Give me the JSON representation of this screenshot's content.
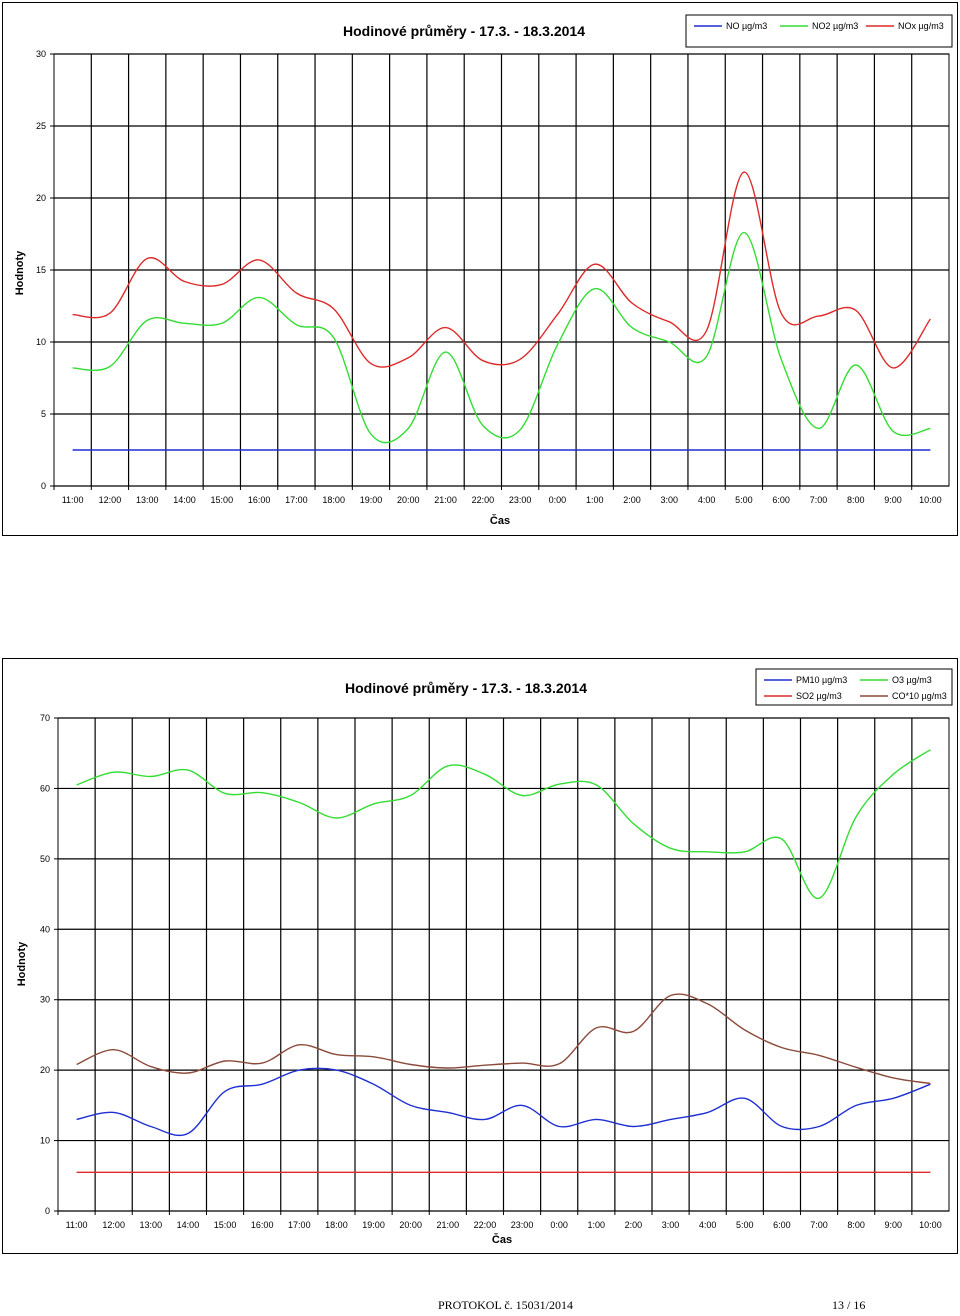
{
  "footer": {
    "protocol": "PROTOKOL č. 15031/2014",
    "page": "13 / 16"
  },
  "colors": {
    "NO": "#1f2fd1",
    "NO2": "#33dd33",
    "NOx": "#dd2a2a",
    "PM10": "#1f2fd1",
    "O3": "#33dd33",
    "SO2": "#dd2a2a",
    "CO": "#8b4a3a"
  },
  "chart_data": [
    {
      "type": "line",
      "title": "Hodinové průměry -  17.3. - 18.3.2014",
      "xlabel": "Čas",
      "ylabel": "Hodnoty",
      "ylim": [
        0,
        30
      ],
      "yticks": [
        0,
        5,
        10,
        15,
        20,
        25,
        30
      ],
      "grid": true,
      "legend_position": "top-right",
      "categories": [
        "11:00",
        "12:00",
        "13:00",
        "14:00",
        "15:00",
        "16:00",
        "17:00",
        "18:00",
        "19:00",
        "20:00",
        "21:00",
        "22:00",
        "23:00",
        "0:00",
        "1:00",
        "2:00",
        "3:00",
        "4:00",
        "5:00",
        "6:00",
        "7:00",
        "8:00",
        "9:00",
        "10:00"
      ],
      "series": [
        {
          "name": "NO µg/m3",
          "values": [
            2.5,
            2.5,
            2.5,
            2.5,
            2.5,
            2.5,
            2.5,
            2.5,
            2.5,
            2.5,
            2.5,
            2.5,
            2.5,
            2.5,
            2.5,
            2.5,
            2.5,
            2.5,
            2.5,
            2.5,
            2.5,
            2.5,
            2.5,
            2.5
          ]
        },
        {
          "name": "NO2 µg/m3",
          "values": [
            8.2,
            8.3,
            11.5,
            11.3,
            11.3,
            13.1,
            11.2,
            10.3,
            3.6,
            4.0,
            9.3,
            4.2,
            3.9,
            9.8,
            13.7,
            11.0,
            10.0,
            9.0,
            17.6,
            8.8,
            4.0,
            8.4,
            3.8,
            4.0
          ]
        },
        {
          "name": "NOx µg/m3",
          "values": [
            11.9,
            12.0,
            15.8,
            14.2,
            14.0,
            15.7,
            13.4,
            12.3,
            8.5,
            8.9,
            11.0,
            8.7,
            8.8,
            11.9,
            15.4,
            12.7,
            11.4,
            10.8,
            21.8,
            12.0,
            11.8,
            12.2,
            8.2,
            11.6
          ]
        }
      ]
    },
    {
      "type": "line",
      "title": "Hodinové průměry -  17.3. - 18.3.2014",
      "xlabel": "Čas",
      "ylabel": "Hodnoty",
      "ylim": [
        0,
        70
      ],
      "yticks": [
        0,
        10,
        20,
        30,
        40,
        50,
        60,
        70
      ],
      "grid": true,
      "legend_position": "top-right",
      "categories": [
        "11:00",
        "12:00",
        "13:00",
        "14:00",
        "15:00",
        "16:00",
        "17:00",
        "18:00",
        "19:00",
        "20:00",
        "21:00",
        "22:00",
        "23:00",
        "0:00",
        "1:00",
        "2:00",
        "3:00",
        "4:00",
        "5:00",
        "6:00",
        "7:00",
        "8:00",
        "9:00",
        "10:00"
      ],
      "series": [
        {
          "name": "PM10 µg/m3",
          "values": [
            13,
            14,
            12,
            11,
            17,
            18,
            20,
            20,
            18,
            15,
            14,
            13,
            15,
            12,
            13,
            12,
            13,
            14,
            16,
            12,
            12,
            15,
            16,
            18
          ]
        },
        {
          "name": "O3 µg/m3",
          "values": [
            60.5,
            62.3,
            61.7,
            62.6,
            59.3,
            59.4,
            58.0,
            55.8,
            57.8,
            59.0,
            63.2,
            62.0,
            59.0,
            60.6,
            60.5,
            55.0,
            51.5,
            51.0,
            51.0,
            52.8,
            44.4,
            56.0,
            62.0,
            65.5
          ]
        },
        {
          "name": "SO2 µg/m3",
          "values": [
            5.5,
            5.5,
            5.5,
            5.5,
            5.5,
            5.5,
            5.5,
            5.5,
            5.5,
            5.5,
            5.5,
            5.5,
            5.5,
            5.5,
            5.5,
            5.5,
            5.5,
            5.5,
            5.5,
            5.5,
            5.5,
            5.5,
            5.5,
            5.5
          ]
        },
        {
          "name": "CO*10 µg/m3",
          "values": [
            20.8,
            22.9,
            20.5,
            19.6,
            21.3,
            21.0,
            23.6,
            22.2,
            21.9,
            20.8,
            20.3,
            20.7,
            21.0,
            20.9,
            26.0,
            25.5,
            30.6,
            29.4,
            25.7,
            23.2,
            22.1,
            20.4,
            18.9,
            18.1
          ]
        }
      ]
    }
  ]
}
